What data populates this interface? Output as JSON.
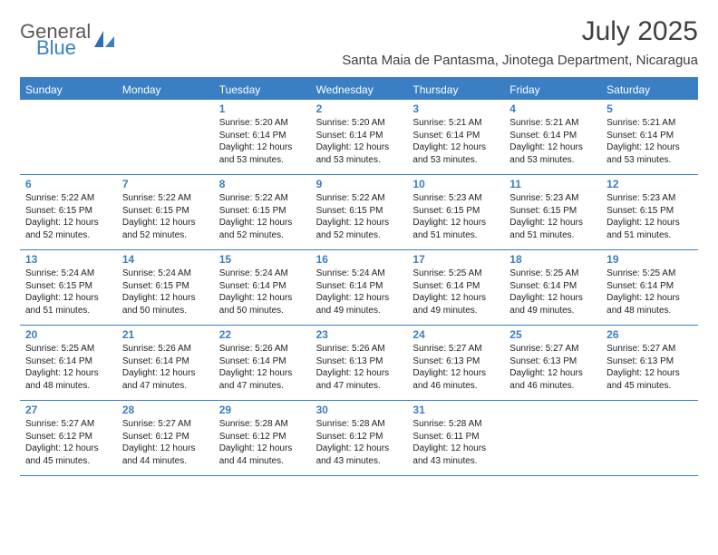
{
  "logo": {
    "general": "General",
    "blue": "Blue"
  },
  "title": "July 2025",
  "location": "Santa Maia de Pantasma, Jinotega Department, Nicaragua",
  "colors": {
    "brand_blue": "#3a7fc4",
    "header_gray": "#5a5a5a",
    "text": "#222222",
    "title_gray": "#404040"
  },
  "daysOfWeek": [
    "Sunday",
    "Monday",
    "Tuesday",
    "Wednesday",
    "Thursday",
    "Friday",
    "Saturday"
  ],
  "weeks": [
    [
      {
        "num": "",
        "sunrise": "",
        "sunset": "",
        "daylight": ""
      },
      {
        "num": "",
        "sunrise": "",
        "sunset": "",
        "daylight": ""
      },
      {
        "num": "1",
        "sunrise": "Sunrise: 5:20 AM",
        "sunset": "Sunset: 6:14 PM",
        "daylight": "Daylight: 12 hours and 53 minutes."
      },
      {
        "num": "2",
        "sunrise": "Sunrise: 5:20 AM",
        "sunset": "Sunset: 6:14 PM",
        "daylight": "Daylight: 12 hours and 53 minutes."
      },
      {
        "num": "3",
        "sunrise": "Sunrise: 5:21 AM",
        "sunset": "Sunset: 6:14 PM",
        "daylight": "Daylight: 12 hours and 53 minutes."
      },
      {
        "num": "4",
        "sunrise": "Sunrise: 5:21 AM",
        "sunset": "Sunset: 6:14 PM",
        "daylight": "Daylight: 12 hours and 53 minutes."
      },
      {
        "num": "5",
        "sunrise": "Sunrise: 5:21 AM",
        "sunset": "Sunset: 6:14 PM",
        "daylight": "Daylight: 12 hours and 53 minutes."
      }
    ],
    [
      {
        "num": "6",
        "sunrise": "Sunrise: 5:22 AM",
        "sunset": "Sunset: 6:15 PM",
        "daylight": "Daylight: 12 hours and 52 minutes."
      },
      {
        "num": "7",
        "sunrise": "Sunrise: 5:22 AM",
        "sunset": "Sunset: 6:15 PM",
        "daylight": "Daylight: 12 hours and 52 minutes."
      },
      {
        "num": "8",
        "sunrise": "Sunrise: 5:22 AM",
        "sunset": "Sunset: 6:15 PM",
        "daylight": "Daylight: 12 hours and 52 minutes."
      },
      {
        "num": "9",
        "sunrise": "Sunrise: 5:22 AM",
        "sunset": "Sunset: 6:15 PM",
        "daylight": "Daylight: 12 hours and 52 minutes."
      },
      {
        "num": "10",
        "sunrise": "Sunrise: 5:23 AM",
        "sunset": "Sunset: 6:15 PM",
        "daylight": "Daylight: 12 hours and 51 minutes."
      },
      {
        "num": "11",
        "sunrise": "Sunrise: 5:23 AM",
        "sunset": "Sunset: 6:15 PM",
        "daylight": "Daylight: 12 hours and 51 minutes."
      },
      {
        "num": "12",
        "sunrise": "Sunrise: 5:23 AM",
        "sunset": "Sunset: 6:15 PM",
        "daylight": "Daylight: 12 hours and 51 minutes."
      }
    ],
    [
      {
        "num": "13",
        "sunrise": "Sunrise: 5:24 AM",
        "sunset": "Sunset: 6:15 PM",
        "daylight": "Daylight: 12 hours and 51 minutes."
      },
      {
        "num": "14",
        "sunrise": "Sunrise: 5:24 AM",
        "sunset": "Sunset: 6:15 PM",
        "daylight": "Daylight: 12 hours and 50 minutes."
      },
      {
        "num": "15",
        "sunrise": "Sunrise: 5:24 AM",
        "sunset": "Sunset: 6:14 PM",
        "daylight": "Daylight: 12 hours and 50 minutes."
      },
      {
        "num": "16",
        "sunrise": "Sunrise: 5:24 AM",
        "sunset": "Sunset: 6:14 PM",
        "daylight": "Daylight: 12 hours and 49 minutes."
      },
      {
        "num": "17",
        "sunrise": "Sunrise: 5:25 AM",
        "sunset": "Sunset: 6:14 PM",
        "daylight": "Daylight: 12 hours and 49 minutes."
      },
      {
        "num": "18",
        "sunrise": "Sunrise: 5:25 AM",
        "sunset": "Sunset: 6:14 PM",
        "daylight": "Daylight: 12 hours and 49 minutes."
      },
      {
        "num": "19",
        "sunrise": "Sunrise: 5:25 AM",
        "sunset": "Sunset: 6:14 PM",
        "daylight": "Daylight: 12 hours and 48 minutes."
      }
    ],
    [
      {
        "num": "20",
        "sunrise": "Sunrise: 5:25 AM",
        "sunset": "Sunset: 6:14 PM",
        "daylight": "Daylight: 12 hours and 48 minutes."
      },
      {
        "num": "21",
        "sunrise": "Sunrise: 5:26 AM",
        "sunset": "Sunset: 6:14 PM",
        "daylight": "Daylight: 12 hours and 47 minutes."
      },
      {
        "num": "22",
        "sunrise": "Sunrise: 5:26 AM",
        "sunset": "Sunset: 6:14 PM",
        "daylight": "Daylight: 12 hours and 47 minutes."
      },
      {
        "num": "23",
        "sunrise": "Sunrise: 5:26 AM",
        "sunset": "Sunset: 6:13 PM",
        "daylight": "Daylight: 12 hours and 47 minutes."
      },
      {
        "num": "24",
        "sunrise": "Sunrise: 5:27 AM",
        "sunset": "Sunset: 6:13 PM",
        "daylight": "Daylight: 12 hours and 46 minutes."
      },
      {
        "num": "25",
        "sunrise": "Sunrise: 5:27 AM",
        "sunset": "Sunset: 6:13 PM",
        "daylight": "Daylight: 12 hours and 46 minutes."
      },
      {
        "num": "26",
        "sunrise": "Sunrise: 5:27 AM",
        "sunset": "Sunset: 6:13 PM",
        "daylight": "Daylight: 12 hours and 45 minutes."
      }
    ],
    [
      {
        "num": "27",
        "sunrise": "Sunrise: 5:27 AM",
        "sunset": "Sunset: 6:12 PM",
        "daylight": "Daylight: 12 hours and 45 minutes."
      },
      {
        "num": "28",
        "sunrise": "Sunrise: 5:27 AM",
        "sunset": "Sunset: 6:12 PM",
        "daylight": "Daylight: 12 hours and 44 minutes."
      },
      {
        "num": "29",
        "sunrise": "Sunrise: 5:28 AM",
        "sunset": "Sunset: 6:12 PM",
        "daylight": "Daylight: 12 hours and 44 minutes."
      },
      {
        "num": "30",
        "sunrise": "Sunrise: 5:28 AM",
        "sunset": "Sunset: 6:12 PM",
        "daylight": "Daylight: 12 hours and 43 minutes."
      },
      {
        "num": "31",
        "sunrise": "Sunrise: 5:28 AM",
        "sunset": "Sunset: 6:11 PM",
        "daylight": "Daylight: 12 hours and 43 minutes."
      },
      {
        "num": "",
        "sunrise": "",
        "sunset": "",
        "daylight": ""
      },
      {
        "num": "",
        "sunrise": "",
        "sunset": "",
        "daylight": ""
      }
    ]
  ]
}
